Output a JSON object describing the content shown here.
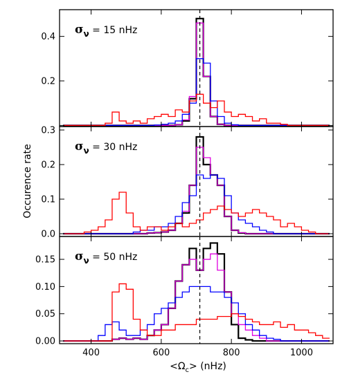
{
  "chart_data": {
    "type": "line",
    "layout": "three stacked step histograms sharing the x axis",
    "xlabel_parts": [
      "<Ω",
      "c",
      "> (nHz)"
    ],
    "ylabel": "Occurence rate",
    "xlim": [
      310,
      1090
    ],
    "x_ticks": [
      400,
      600,
      800,
      1000
    ],
    "x_tick_labels": [
      "400",
      "600",
      "800",
      "1000"
    ],
    "reference_line": {
      "x": 710,
      "style": "dashed",
      "color": "#000000"
    },
    "bin_width": 20,
    "bin_edges": [
      320,
      340,
      360,
      380,
      400,
      420,
      440,
      460,
      480,
      500,
      520,
      540,
      560,
      580,
      600,
      620,
      640,
      660,
      680,
      700,
      720,
      740,
      760,
      780,
      800,
      820,
      840,
      860,
      880,
      900,
      920,
      940,
      960,
      980,
      1000,
      1020,
      1040,
      1060,
      1080
    ],
    "panels": [
      {
        "annotation": {
          "symbol": "σ",
          "subscript": "ν",
          "text": " =  15 nHz"
        },
        "ylim": [
          -0.005,
          0.52
        ],
        "y_ticks": [
          0.0,
          0.2,
          0.4
        ],
        "y_tick_labels": [
          "",
          "0.2",
          "0.4"
        ],
        "series": [
          {
            "color": "#000000",
            "values": [
              0,
              0,
              0,
              0,
              0,
              0,
              0,
              0,
              0,
              0,
              0,
              0,
              0,
              0,
              0,
              0,
              0.003,
              0.02,
              0.12,
              0.48,
              0.22,
              0.04,
              0.005,
              0,
              0,
              0,
              0,
              0,
              0,
              0,
              0,
              0,
              0,
              0,
              0,
              0,
              0,
              0
            ]
          },
          {
            "color": "#e000e0",
            "values": [
              0,
              0,
              0,
              0,
              0,
              0,
              0,
              0,
              0,
              0,
              0,
              0,
              0,
              0,
              0,
              0,
              0.003,
              0.025,
              0.13,
              0.46,
              0.22,
              0.04,
              0.005,
              0,
              0,
              0,
              0,
              0,
              0,
              0,
              0,
              0,
              0,
              0,
              0,
              0,
              0,
              0
            ]
          },
          {
            "color": "#0000ff",
            "values": [
              0,
              0,
              0,
              0,
              0,
              0,
              0,
              0,
              0,
              0,
              0,
              0,
              0,
              0.002,
              0.005,
              0.01,
              0.02,
              0.05,
              0.1,
              0.3,
              0.28,
              0.11,
              0.04,
              0.01,
              0.003,
              0,
              0,
              0,
              0,
              0,
              0,
              0,
              0,
              0,
              0,
              0,
              0,
              0
            ]
          },
          {
            "color": "#ff0000",
            "values": [
              0,
              0,
              0,
              0,
              0,
              0,
              0.01,
              0.06,
              0.02,
              0.01,
              0.02,
              0.01,
              0.03,
              0.04,
              0.05,
              0.04,
              0.07,
              0.06,
              0.11,
              0.14,
              0.1,
              0.08,
              0.11,
              0.06,
              0.04,
              0.05,
              0.04,
              0.02,
              0.03,
              0.01,
              0.01,
              0.005,
              0,
              0,
              0,
              0,
              0,
              0
            ]
          }
        ]
      },
      {
        "annotation": {
          "symbol": "σ",
          "subscript": "ν",
          "text": " =  30 nHz"
        },
        "ylim": [
          -0.008,
          0.31
        ],
        "y_ticks": [
          0.0,
          0.1,
          0.2,
          0.3
        ],
        "y_tick_labels": [
          "0.0",
          "0.1",
          "0.2",
          "0.3"
        ],
        "series": [
          {
            "color": "#000000",
            "values": [
              0,
              0,
              0,
              0,
              0,
              0,
              0,
              0,
              0,
              0,
              0,
              0,
              0.002,
              0.003,
              0.005,
              0.01,
              0.03,
              0.06,
              0.14,
              0.28,
              0.2,
              0.17,
              0.14,
              0.05,
              0.01,
              0.002,
              0,
              0,
              0,
              0,
              0,
              0,
              0,
              0,
              0,
              0,
              0,
              0
            ]
          },
          {
            "color": "#e000e0",
            "values": [
              0,
              0,
              0,
              0,
              0,
              0,
              0,
              0,
              0,
              0,
              0,
              0,
              0.002,
              0.003,
              0.005,
              0.01,
              0.03,
              0.065,
              0.14,
              0.25,
              0.22,
              0.17,
              0.14,
              0.05,
              0.01,
              0.003,
              0,
              0,
              0,
              0,
              0,
              0,
              0,
              0,
              0,
              0,
              0,
              0
            ]
          },
          {
            "color": "#0000ff",
            "values": [
              0,
              0,
              0,
              0,
              0,
              0,
              0,
              0,
              0,
              0,
              0.005,
              0.01,
              0.01,
              0.02,
              0.02,
              0.03,
              0.05,
              0.09,
              0.11,
              0.17,
              0.16,
              0.17,
              0.16,
              0.11,
              0.06,
              0.04,
              0.03,
              0.02,
              0.01,
              0.005,
              0,
              0,
              0,
              0,
              0,
              0,
              0,
              0
            ]
          },
          {
            "color": "#ff0000",
            "values": [
              0,
              0,
              0,
              0.005,
              0.01,
              0.02,
              0.04,
              0.1,
              0.12,
              0.06,
              0.02,
              0.01,
              0.02,
              0.02,
              0.01,
              0.02,
              0.03,
              0.02,
              0.03,
              0.04,
              0.06,
              0.07,
              0.08,
              0.07,
              0.06,
              0.05,
              0.06,
              0.07,
              0.06,
              0.05,
              0.04,
              0.02,
              0.03,
              0.02,
              0.01,
              0.005,
              0,
              0
            ]
          }
        ]
      },
      {
        "annotation": {
          "symbol": "σ",
          "subscript": "ν",
          "text": " =  50 nHz"
        },
        "ylim": [
          -0.005,
          0.192
        ],
        "y_ticks": [
          0.0,
          0.05,
          0.1,
          0.15
        ],
        "y_tick_labels": [
          "0.00",
          "0.05",
          "0.10",
          "0.15"
        ],
        "series": [
          {
            "color": "#000000",
            "values": [
              0,
              0,
              0,
              0,
              0,
              0,
              0,
              0.003,
              0.005,
              0.003,
              0.005,
              0.003,
              0.01,
              0.02,
              0.03,
              0.06,
              0.11,
              0.14,
              0.17,
              0.13,
              0.17,
              0.18,
              0.16,
              0.09,
              0.03,
              0.005,
              0.002,
              0,
              0,
              0,
              0,
              0,
              0,
              0,
              0,
              0,
              0,
              0
            ]
          },
          {
            "color": "#e000e0",
            "values": [
              0,
              0,
              0,
              0,
              0,
              0,
              0,
              0.003,
              0.005,
              0.003,
              0.005,
              0.003,
              0.01,
              0.02,
              0.03,
              0.06,
              0.11,
              0.14,
              0.15,
              0.13,
              0.15,
              0.16,
              0.13,
              0.09,
              0.05,
              0.03,
              0.02,
              0.01,
              0.005,
              0,
              0,
              0,
              0,
              0,
              0,
              0,
              0,
              0
            ]
          },
          {
            "color": "#0000ff",
            "values": [
              0,
              0,
              0,
              0,
              0,
              0.01,
              0.03,
              0.035,
              0.02,
              0.01,
              0.01,
              0.02,
              0.03,
              0.05,
              0.06,
              0.07,
              0.08,
              0.09,
              0.1,
              0.1,
              0.1,
              0.09,
              0.09,
              0.08,
              0.07,
              0.05,
              0.03,
              0.02,
              0.01,
              0.005,
              0.003,
              0,
              0,
              0,
              0,
              0,
              0,
              0
            ]
          },
          {
            "color": "#ff0000",
            "values": [
              0,
              0,
              0,
              0,
              0,
              0,
              0,
              0.09,
              0.105,
              0.095,
              0.04,
              0.02,
              0.01,
              0.01,
              0.02,
              0.02,
              0.03,
              0.03,
              0.03,
              0.04,
              0.04,
              0.04,
              0.045,
              0.045,
              0.05,
              0.045,
              0.04,
              0.035,
              0.03,
              0.03,
              0.035,
              0.025,
              0.03,
              0.02,
              0.02,
              0.015,
              0.01,
              0.005
            ]
          }
        ]
      }
    ]
  }
}
